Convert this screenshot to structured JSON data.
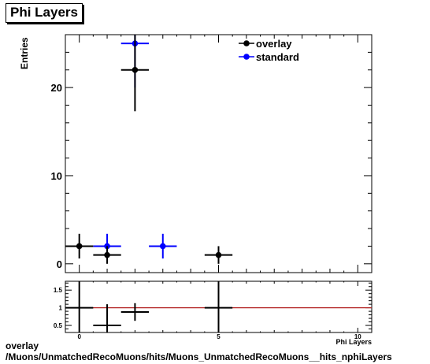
{
  "chart_data": [
    {
      "type": "scatter",
      "title": "Phi Layers",
      "xlabel": "Phi Layers",
      "ylabel": "Entries",
      "xlim": [
        -0.5,
        10.5
      ],
      "ylim": [
        -1,
        26
      ],
      "grid": false,
      "legend_position": "top-right",
      "x_ticks": [
        0,
        5,
        10
      ],
      "y_ticks": [
        0,
        10,
        20
      ],
      "series": [
        {
          "name": "overlay",
          "color": "#000000",
          "points": [
            {
              "x": 0,
              "y": 2,
              "yerr": 1.4
            },
            {
              "x": 1,
              "y": 1,
              "yerr": 1
            },
            {
              "x": 2,
              "y": 22,
              "yerr": 4.7
            },
            {
              "x": 5,
              "y": 1,
              "yerr": 1
            }
          ]
        },
        {
          "name": "standard",
          "color": "#0000ff",
          "points": [
            {
              "x": 1,
              "y": 2,
              "yerr": 1.4
            },
            {
              "x": 2,
              "y": 25,
              "yerr": 5
            },
            {
              "x": 3,
              "y": 2,
              "yerr": 1.4
            }
          ]
        }
      ]
    },
    {
      "type": "scatter",
      "title": "",
      "xlabel": "",
      "ylabel": "",
      "xlim": [
        -0.5,
        10.5
      ],
      "ylim": [
        0.3,
        1.75
      ],
      "x_ticks": [
        0,
        5,
        10
      ],
      "y_ticks": [
        0.5,
        1,
        1.5
      ],
      "reference_line": 1,
      "reference_color": "#b22222",
      "points": [
        {
          "x": 0,
          "y": 1,
          "yerr": 1.2
        },
        {
          "x": 1,
          "y": 0.5,
          "yerr": 0.6
        },
        {
          "x": 2,
          "y": 0.88,
          "yerr": 0.25
        },
        {
          "x": 5,
          "y": 1,
          "yerr": 1.4
        }
      ]
    }
  ],
  "footer": {
    "line1": "overlay",
    "line2": "/Muons/UnmatchedRecoMuons/hits/Muons_UnmatchedRecoMuons__hits_nphiLayers"
  }
}
